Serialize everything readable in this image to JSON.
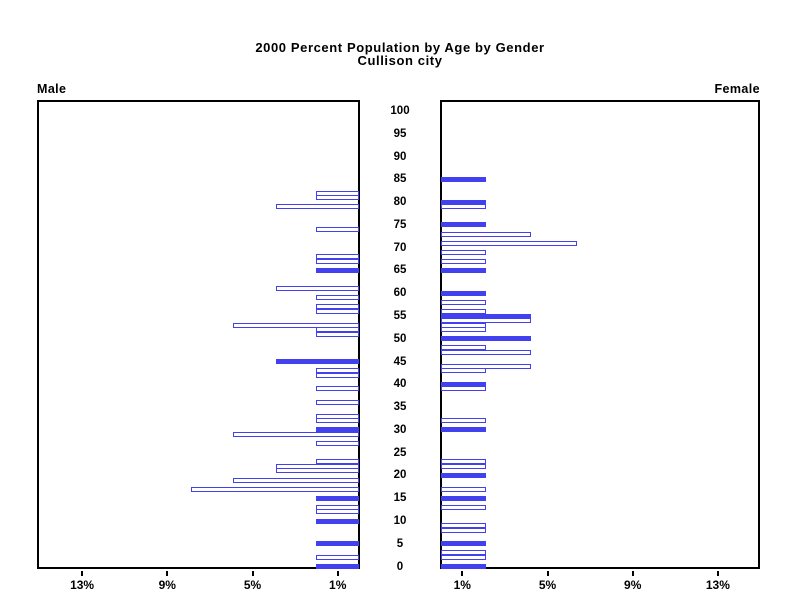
{
  "title": {
    "line1": "2000 Percent Population by Age by Gender",
    "line2": "Cullison city"
  },
  "panels": {
    "male_label": "Male",
    "female_label": "Female"
  },
  "colors": {
    "bar_blue": "#4141F0",
    "axis_black": "#000000",
    "background": "#FFFFFF"
  },
  "chart_data": {
    "type": "bar",
    "subtype": "population-pyramid",
    "title": "2000 Percent Population by Age by Gender",
    "subtitle": "Cullison city",
    "orientation": "horizontal back-to-back",
    "grid": false,
    "legend": "none",
    "bar_style_rule": "bars at ages divisible by 5 are solid blue; all other ages are white with blue outline",
    "age_axis": {
      "min": 0,
      "max": 100,
      "tick_step": 5,
      "tick_labels": [
        "0",
        "5",
        "10",
        "15",
        "20",
        "25",
        "30",
        "35",
        "40",
        "45",
        "50",
        "55",
        "60",
        "65",
        "70",
        "75",
        "80",
        "85",
        "90",
        "95",
        "100"
      ]
    },
    "pct_axis": {
      "range_pct": [
        0,
        15.2
      ],
      "male_tick_values": [
        13,
        9,
        5,
        1
      ],
      "male_tick_labels": [
        "13%",
        "9%",
        "5%",
        "1%"
      ],
      "female_tick_values": [
        1,
        5,
        9,
        13
      ],
      "female_tick_labels": [
        "1%",
        "5%",
        "9%",
        "13%"
      ]
    },
    "series": [
      {
        "name": "Male",
        "side": "left",
        "bars": [
          {
            "age": 82,
            "pct": 2.0,
            "solid": false
          },
          {
            "age": 81,
            "pct": 2.0,
            "solid": false
          },
          {
            "age": 79,
            "pct": 3.9,
            "solid": false
          },
          {
            "age": 74,
            "pct": 2.0,
            "solid": false
          },
          {
            "age": 68,
            "pct": 2.0,
            "solid": false
          },
          {
            "age": 67,
            "pct": 2.0,
            "solid": false
          },
          {
            "age": 65,
            "pct": 2.0,
            "solid": true
          },
          {
            "age": 61,
            "pct": 3.9,
            "solid": false
          },
          {
            "age": 59,
            "pct": 2.0,
            "solid": false
          },
          {
            "age": 57,
            "pct": 2.0,
            "solid": false
          },
          {
            "age": 56,
            "pct": 2.0,
            "solid": false
          },
          {
            "age": 53,
            "pct": 5.9,
            "solid": false
          },
          {
            "age": 52,
            "pct": 2.0,
            "solid": false
          },
          {
            "age": 51,
            "pct": 2.0,
            "solid": false
          },
          {
            "age": 45,
            "pct": 3.9,
            "solid": true
          },
          {
            "age": 43,
            "pct": 2.0,
            "solid": false
          },
          {
            "age": 42,
            "pct": 2.0,
            "solid": false
          },
          {
            "age": 39,
            "pct": 2.0,
            "solid": false
          },
          {
            "age": 36,
            "pct": 2.0,
            "solid": false
          },
          {
            "age": 33,
            "pct": 2.0,
            "solid": false
          },
          {
            "age": 32,
            "pct": 2.0,
            "solid": false
          },
          {
            "age": 30,
            "pct": 2.0,
            "solid": true
          },
          {
            "age": 29,
            "pct": 5.9,
            "solid": false
          },
          {
            "age": 27,
            "pct": 2.0,
            "solid": false
          },
          {
            "age": 23,
            "pct": 2.0,
            "solid": false
          },
          {
            "age": 22,
            "pct": 3.9,
            "solid": false
          },
          {
            "age": 21,
            "pct": 3.9,
            "solid": false
          },
          {
            "age": 19,
            "pct": 5.9,
            "solid": false
          },
          {
            "age": 17,
            "pct": 7.9,
            "solid": false
          },
          {
            "age": 15,
            "pct": 2.0,
            "solid": true
          },
          {
            "age": 13,
            "pct": 2.0,
            "solid": false
          },
          {
            "age": 12,
            "pct": 2.0,
            "solid": false
          },
          {
            "age": 10,
            "pct": 2.0,
            "solid": true
          },
          {
            "age": 5,
            "pct": 2.0,
            "solid": true
          },
          {
            "age": 2,
            "pct": 2.0,
            "solid": false
          },
          {
            "age": 0,
            "pct": 2.0,
            "solid": true
          }
        ]
      },
      {
        "name": "Female",
        "side": "right",
        "bars": [
          {
            "age": 85,
            "pct": 2.1,
            "solid": true
          },
          {
            "age": 80,
            "pct": 2.1,
            "solid": true
          },
          {
            "age": 79,
            "pct": 2.1,
            "solid": false
          },
          {
            "age": 75,
            "pct": 2.1,
            "solid": true
          },
          {
            "age": 73,
            "pct": 4.2,
            "solid": false
          },
          {
            "age": 71,
            "pct": 6.4,
            "solid": false
          },
          {
            "age": 69,
            "pct": 2.1,
            "solid": false
          },
          {
            "age": 67,
            "pct": 2.1,
            "solid": false
          },
          {
            "age": 65,
            "pct": 2.1,
            "solid": true
          },
          {
            "age": 60,
            "pct": 2.1,
            "solid": true
          },
          {
            "age": 58,
            "pct": 2.1,
            "solid": false
          },
          {
            "age": 56,
            "pct": 2.1,
            "solid": false
          },
          {
            "age": 55,
            "pct": 4.2,
            "solid": true
          },
          {
            "age": 54,
            "pct": 4.2,
            "solid": false
          },
          {
            "age": 53,
            "pct": 2.1,
            "solid": false
          },
          {
            "age": 52,
            "pct": 2.1,
            "solid": false
          },
          {
            "age": 50,
            "pct": 4.2,
            "solid": true
          },
          {
            "age": 48,
            "pct": 2.1,
            "solid": false
          },
          {
            "age": 47,
            "pct": 4.2,
            "solid": false
          },
          {
            "age": 44,
            "pct": 4.2,
            "solid": false
          },
          {
            "age": 43,
            "pct": 2.1,
            "solid": false
          },
          {
            "age": 40,
            "pct": 2.1,
            "solid": true
          },
          {
            "age": 39,
            "pct": 2.1,
            "solid": false
          },
          {
            "age": 32,
            "pct": 2.1,
            "solid": false
          },
          {
            "age": 30,
            "pct": 2.1,
            "solid": true
          },
          {
            "age": 23,
            "pct": 2.1,
            "solid": false
          },
          {
            "age": 22,
            "pct": 2.1,
            "solid": false
          },
          {
            "age": 20,
            "pct": 2.1,
            "solid": true
          },
          {
            "age": 17,
            "pct": 2.1,
            "solid": false
          },
          {
            "age": 15,
            "pct": 2.1,
            "solid": true
          },
          {
            "age": 13,
            "pct": 2.1,
            "solid": false
          },
          {
            "age": 9,
            "pct": 2.1,
            "solid": false
          },
          {
            "age": 8,
            "pct": 2.1,
            "solid": false
          },
          {
            "age": 5,
            "pct": 2.1,
            "solid": true
          },
          {
            "age": 3,
            "pct": 2.1,
            "solid": false
          },
          {
            "age": 2,
            "pct": 2.1,
            "solid": false
          },
          {
            "age": 0,
            "pct": 2.1,
            "solid": true
          }
        ]
      }
    ]
  }
}
